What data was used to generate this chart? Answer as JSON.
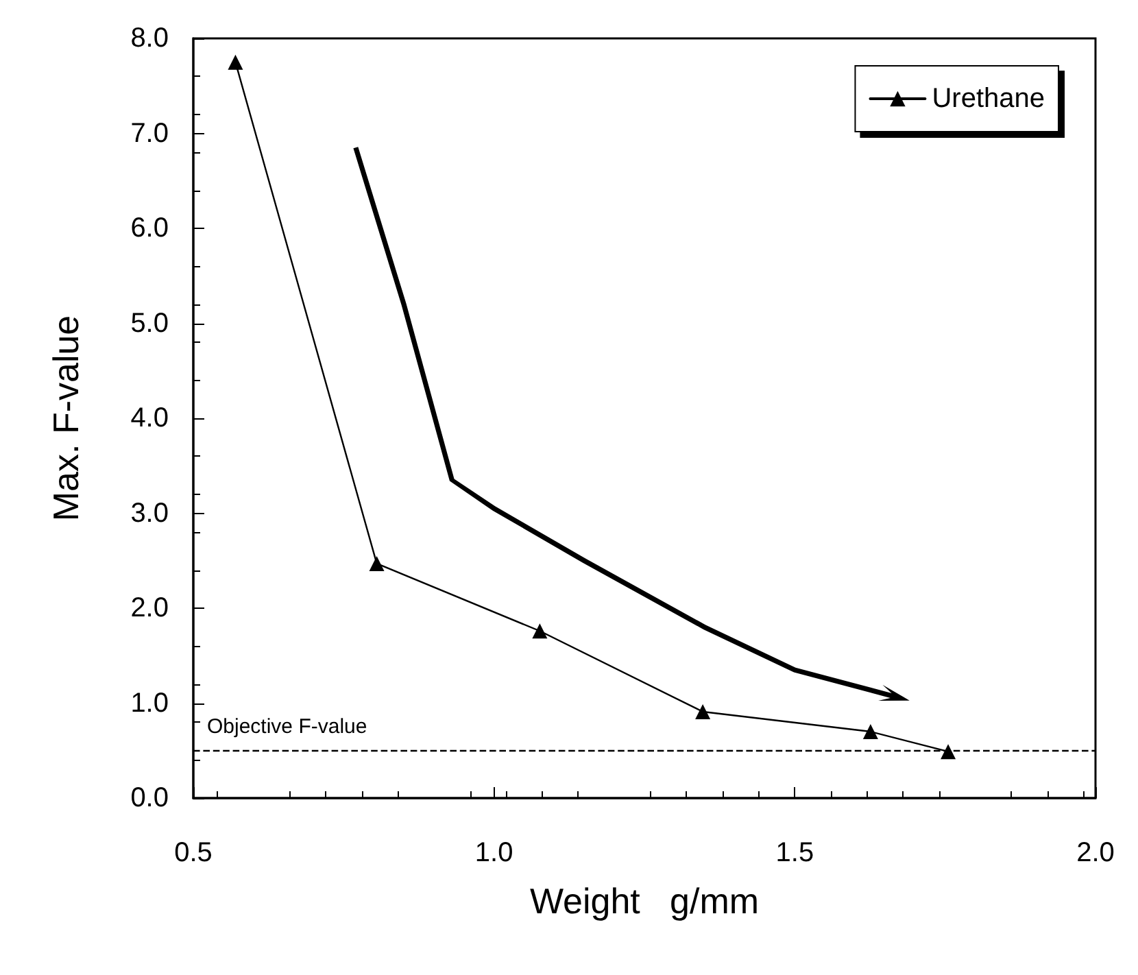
{
  "chart_data": {
    "type": "line",
    "xlabel": "Weight   g/mm",
    "ylabel": "Max. F-value",
    "x": [
      0.57,
      0.805,
      1.076,
      1.347,
      1.626,
      1.755
    ],
    "series": [
      {
        "name": "Urethane",
        "color": "#000000",
        "values": [
          7.75,
          2.47,
          1.76,
          0.91,
          0.7,
          0.49
        ]
      }
    ],
    "xlim": [
      0.5,
      2.0
    ],
    "xticks": [
      {
        "value": 0.5,
        "label": "0.5"
      },
      {
        "value": 1.0,
        "label": "1.0"
      },
      {
        "value": 1.5,
        "label": "1.5"
      },
      {
        "value": 2.0,
        "label": "2.0"
      }
    ],
    "ylim": [
      0,
      8
    ],
    "yticks": [
      {
        "value": 0,
        "label": "0.0"
      },
      {
        "value": 1,
        "label": "1.0"
      },
      {
        "value": 2,
        "label": "2.0"
      },
      {
        "value": 3,
        "label": "3.0"
      },
      {
        "value": 4,
        "label": "4.0"
      },
      {
        "value": 5,
        "label": "5.0"
      },
      {
        "value": 6,
        "label": "6.0"
      },
      {
        "value": 7,
        "label": "7.0"
      },
      {
        "value": 8,
        "label": "8.0"
      }
    ],
    "ref_lines": [
      {
        "axis": "y",
        "value": 0.5,
        "label": "Objective F-value",
        "color": "#000000",
        "line_style": "dashed"
      }
    ],
    "grid": false,
    "legend": "top right",
    "marker": "triangle",
    "line_style": "solid"
  }
}
